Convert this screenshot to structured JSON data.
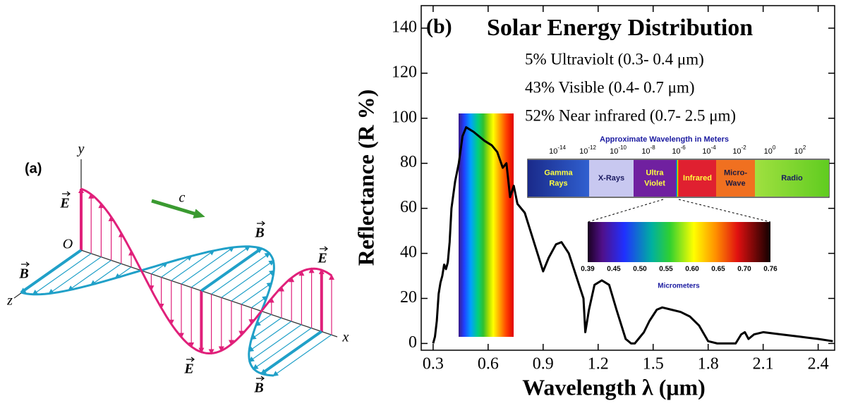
{
  "diagram": {
    "panel_label": "(a)",
    "axis_y": "y",
    "axis_x": "x",
    "axis_z": "z",
    "origin": "O",
    "speed": "c",
    "field_labels": {
      "electric": "E",
      "magnetic": "B"
    }
  },
  "chart_data": {
    "type": "line",
    "panel_label": "(b)",
    "title": "Solar Energy Distribution",
    "annotations": [
      "5% Ultraviolt (0.3- 0.4 μm)",
      "43% Visible (0.4- 0.7 μm)",
      "52% Near infrared (0.7- 2.5 μm)"
    ],
    "x_label": "Wavelength λ (μm)",
    "y_label": "Reflectance (R %)",
    "x": [
      0.3,
      0.31,
      0.32,
      0.33,
      0.34,
      0.35,
      0.36,
      0.37,
      0.38,
      0.39,
      0.4,
      0.42,
      0.44,
      0.46,
      0.48,
      0.5,
      0.52,
      0.55,
      0.58,
      0.62,
      0.65,
      0.68,
      0.7,
      0.72,
      0.74,
      0.76,
      0.8,
      0.85,
      0.9,
      0.93,
      0.97,
      1.0,
      1.04,
      1.08,
      1.12,
      1.13,
      1.15,
      1.18,
      1.22,
      1.26,
      1.3,
      1.35,
      1.38,
      1.4,
      1.42,
      1.45,
      1.48,
      1.52,
      1.55,
      1.6,
      1.65,
      1.7,
      1.75,
      1.8,
      1.85,
      1.95,
      1.98,
      2.0,
      2.02,
      2.05,
      2.1,
      2.2,
      2.3,
      2.4,
      2.48
    ],
    "values": [
      0,
      3,
      10,
      22,
      27,
      30,
      35,
      33,
      36,
      45,
      60,
      72,
      80,
      92,
      96,
      95,
      94,
      92,
      90,
      88,
      85,
      78,
      80,
      65,
      70,
      62,
      58,
      45,
      32,
      38,
      44,
      45,
      40,
      30,
      20,
      5,
      15,
      26,
      28,
      26,
      15,
      2,
      0,
      0,
      2,
      5,
      10,
      15,
      16,
      15,
      14,
      12,
      8,
      1,
      0,
      0,
      4,
      5,
      2,
      4,
      5,
      4,
      3,
      2,
      1
    ],
    "color": "#000000",
    "xlim": [
      0.235,
      2.49
    ],
    "xticks": [
      0.3,
      0.6,
      0.9,
      1.2,
      1.5,
      1.8,
      2.1,
      2.4
    ],
    "ylim": [
      -3,
      150
    ],
    "yticks": [
      0,
      20,
      40,
      60,
      80,
      100,
      120,
      140
    ]
  },
  "inset": {
    "title": "Approximate Wavelength in Meters",
    "scale": [
      {
        "base": "10",
        "exponent": "-14"
      },
      {
        "base": "10",
        "exponent": "-12"
      },
      {
        "base": "10",
        "exponent": "-10"
      },
      {
        "base": "10",
        "exponent": "-8"
      },
      {
        "base": "10",
        "exponent": "-6"
      },
      {
        "base": "10",
        "exponent": "-4"
      },
      {
        "base": "10",
        "exponent": "-2"
      },
      {
        "base": "10",
        "exponent": "0"
      },
      {
        "base": "10",
        "exponent": "2"
      }
    ],
    "bands": [
      [
        "Gamma",
        "Rays"
      ],
      [
        "X-Rays"
      ],
      [
        "Ultra",
        "Violet"
      ],
      [
        "Infrared"
      ],
      [
        "Micro-",
        "Wave"
      ],
      [
        "Radio"
      ]
    ],
    "visible_ticks": [
      "0.39",
      "0.45",
      "0.50",
      "0.55",
      "0.60",
      "0.65",
      "0.70",
      "0.76"
    ],
    "visible_unit": "Micrometers"
  }
}
